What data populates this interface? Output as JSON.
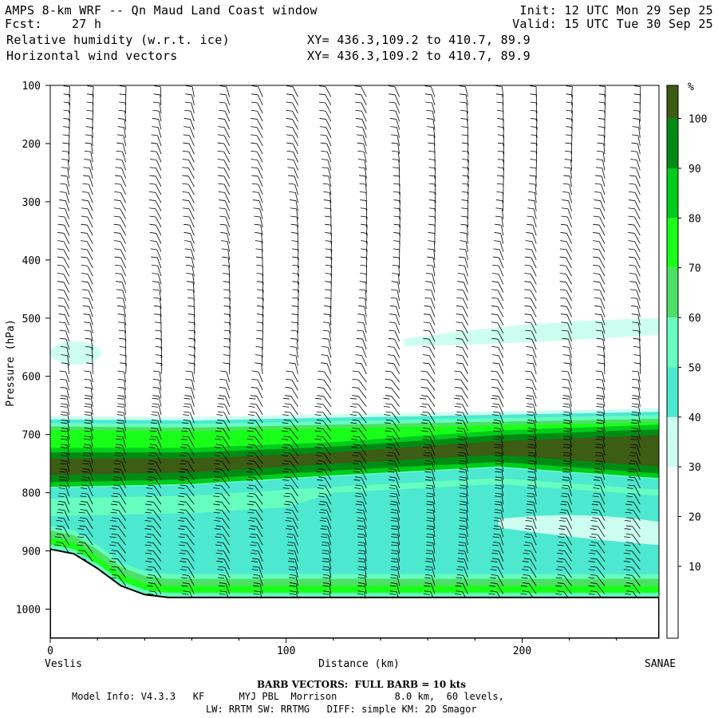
{
  "header": {
    "title": "AMPS 8-km WRF -- Qn Maud Land Coast window",
    "fcst": "Fcst:    27 h",
    "field1": "Relative humidity (w.r.t. ice)",
    "field2": "Horizontal wind vectors",
    "xy1": "XY= 436.3,109.2 to 410.7, 89.9",
    "xy2": "XY= 436.3,109.2 to 410.7, 89.9",
    "init": "Init: 12 UTC Mon 29 Sep 25",
    "valid": "Valid: 15 UTC Tue 30 Sep 25"
  },
  "footer": {
    "barb": "BARB VECTORS:  FULL BARB = 10 kts",
    "model1": "Model Info: V4.3.3   KF      MYJ PBL  Morrison          8.0 km,  60 levels,",
    "model2": "LW: RRTM SW: RRTMG   DIFF: simple KM: 2D Smagor"
  },
  "colors": {
    "b30": "#ccfff0",
    "b40": "#4de8d0",
    "b50": "#66ffc0",
    "b60": "#4de066",
    "b70": "#1aff1a",
    "b80": "#00cc1a",
    "b90": "#008c14",
    "b100": "#3d5c14"
  },
  "chart_data": {
    "type": "cross-section",
    "title": "Relative humidity (w.r.t. ice) and horizontal wind vectors",
    "xlabel": "Distance (km)",
    "ylabel": "Pressure (hPa)",
    "xlim": [
      0,
      258
    ],
    "ylim": [
      1050,
      100
    ],
    "x_ticks": [
      "0",
      "100",
      "200"
    ],
    "y_ticks": [
      "100",
      "200",
      "300",
      "400",
      "500",
      "600",
      "700",
      "800",
      "900",
      "1000"
    ],
    "left_endpoint": "Veslis",
    "right_endpoint": "SANAE",
    "colorbar_unit": "%",
    "colorbar_labels": [
      "10",
      "20",
      "30",
      "40",
      "50",
      "60",
      "70",
      "80",
      "90",
      "100"
    ],
    "rh_layers": [
      {
        "name": "moist layer >=30%",
        "top_hpa": [
          668,
          670,
          665,
          660,
          655
        ],
        "bottom_hpa": [
          900,
          975,
          975,
          975,
          975
        ],
        "x_km": [
          0,
          60,
          120,
          190,
          258
        ]
      },
      {
        "name": "core >=90%",
        "top_hpa": [
          735,
          735,
          725,
          705,
          695
        ],
        "bottom_hpa": [
          780,
          775,
          760,
          745,
          765
        ],
        "x_km": [
          0,
          60,
          120,
          190,
          258
        ]
      },
      {
        "name": "upper patch 30-40%",
        "x_range_km": [
          0,
          16
        ],
        "pressure_hpa": [
          540,
          580
        ]
      },
      {
        "name": "upper band 30-40%",
        "x_range_km": [
          150,
          258
        ],
        "pressure_hpa": [
          500,
          550
        ]
      }
    ],
    "terrain_hpa": {
      "x_km": [
        0,
        10,
        20,
        30,
        40,
        50,
        60,
        80,
        100,
        150,
        200,
        258
      ],
      "p_hpa": [
        897,
        905,
        930,
        960,
        975,
        980,
        980,
        980,
        980,
        980,
        980,
        980
      ]
    },
    "barb_columns_km": [
      8,
      18,
      32,
      47,
      61,
      76,
      90,
      105,
      119,
      134,
      148,
      163,
      177,
      192,
      206,
      221,
      235,
      250
    ]
  }
}
